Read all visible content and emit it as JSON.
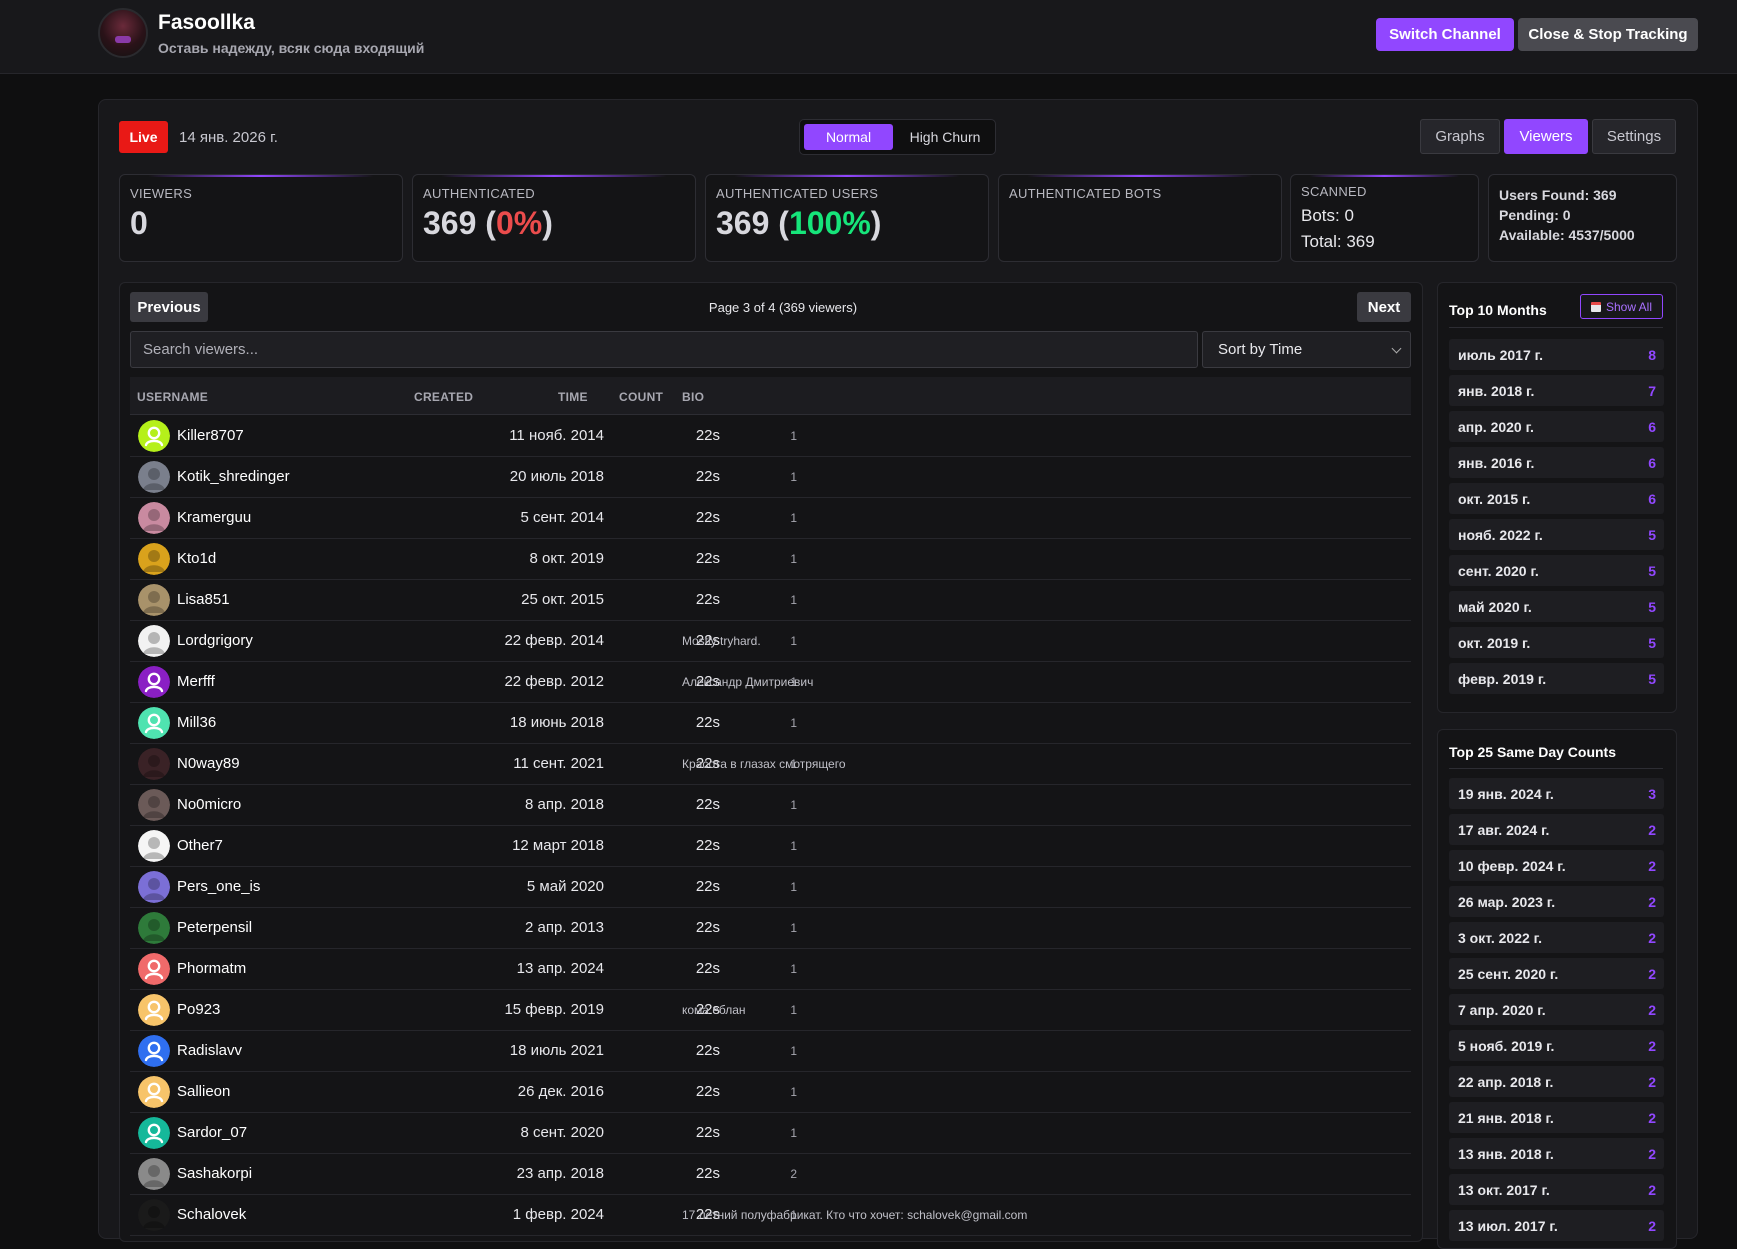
{
  "header": {
    "channel_name": "Fasoollka",
    "channel_subtitle": "Оставь надежду, всяк сюда входящий",
    "switch_label": "Switch Channel",
    "close_label": "Close & Stop Tracking"
  },
  "toolbar": {
    "live_label": "Live",
    "date": "14 янв. 2026 г.",
    "mode_normal": "Normal",
    "mode_high_churn": "High Churn",
    "tab_graphs": "Graphs",
    "tab_viewers": "Viewers",
    "tab_settings": "Settings"
  },
  "stats": {
    "viewers_label": "VIEWERS",
    "viewers_value": "0",
    "auth_label": "AUTHENTICATED",
    "auth_value": "369",
    "auth_pct": "0%",
    "auth_users_label": "AUTHENTICATED USERS",
    "auth_users_value": "369",
    "auth_users_pct": "100%",
    "auth_bots_label": "AUTHENTICATED BOTS",
    "scanned_label": "SCANNED",
    "scanned_bots": "Bots: 0",
    "scanned_total": "Total: 369",
    "users_found": "Users Found: 369",
    "pending": "Pending: 0",
    "available": "Available: 4537/5000"
  },
  "pagination": {
    "prev_label": "Previous",
    "page_info": "Page 3 of 4 (369 viewers)",
    "next_label": "Next"
  },
  "search": {
    "placeholder": "Search viewers..."
  },
  "sort": {
    "selected": "Sort by Time"
  },
  "table": {
    "columns": {
      "username": "USERNAME",
      "created": "CREATED",
      "time": "TIME",
      "count": "COUNT",
      "bio": "BIO"
    },
    "rows": [
      {
        "username": "Killer8707",
        "created": "11 нояб. 2014",
        "time": "22s",
        "count": "1",
        "bio": "",
        "avatar": "default",
        "color": "#b5f01a"
      },
      {
        "username": "Kotik_shredinger",
        "created": "20 июль 2018",
        "time": "22s",
        "count": "1",
        "bio": "",
        "avatar": "photo",
        "color": "#7a7f8c"
      },
      {
        "username": "Kramerguu",
        "created": "5 сент. 2014",
        "time": "22s",
        "count": "1",
        "bio": "",
        "avatar": "photo",
        "color": "#c98aa0"
      },
      {
        "username": "Kto1d",
        "created": "8 окт. 2019",
        "time": "22s",
        "count": "1",
        "bio": "",
        "avatar": "photo",
        "color": "#d9a21c"
      },
      {
        "username": "Lisa851",
        "created": "25 окт. 2015",
        "time": "22s",
        "count": "1",
        "bio": "",
        "avatar": "photo",
        "color": "#a8926a"
      },
      {
        "username": "Lordgrigory",
        "created": "22 февр. 2014",
        "time": "22s",
        "count": "1",
        "bio": "Mostly tryhard.",
        "avatar": "photo",
        "color": "#f2f2f2"
      },
      {
        "username": "Merfff",
        "created": "22 февр. 2012",
        "time": "22s",
        "count": "1",
        "bio": "Александр Дмитриевич",
        "avatar": "default",
        "color": "#8a1fc4"
      },
      {
        "username": "Mill36",
        "created": "18 июнь 2018",
        "time": "22s",
        "count": "1",
        "bio": "",
        "avatar": "default",
        "color": "#4fe3b0"
      },
      {
        "username": "N0way89",
        "created": "11 сент. 2021",
        "time": "22s",
        "count": "1",
        "bio": "Красота в глазах смотрящего",
        "avatar": "photo",
        "color": "#3a2226"
      },
      {
        "username": "No0micro",
        "created": "8 апр. 2018",
        "time": "22s",
        "count": "1",
        "bio": "",
        "avatar": "photo",
        "color": "#6b5a58"
      },
      {
        "username": "Other7",
        "created": "12 март 2018",
        "time": "22s",
        "count": "1",
        "bio": "",
        "avatar": "photo",
        "color": "#f5f5f5"
      },
      {
        "username": "Pers_one_is",
        "created": "5 май 2020",
        "time": "22s",
        "count": "1",
        "bio": "",
        "avatar": "photo",
        "color": "#7b6fd6"
      },
      {
        "username": "Peterpensil",
        "created": "2 апр. 2013",
        "time": "22s",
        "count": "1",
        "bio": "",
        "avatar": "photo",
        "color": "#2e7a3a"
      },
      {
        "username": "Phormatm",
        "created": "13 апр. 2024",
        "time": "22s",
        "count": "1",
        "bio": "",
        "avatar": "default",
        "color": "#f06a6a"
      },
      {
        "username": "Po923",
        "created": "15 февр. 2019",
        "time": "22s",
        "count": "1",
        "bio": "кома еблан",
        "avatar": "default",
        "color": "#f7c46a"
      },
      {
        "username": "Radislavv",
        "created": "18 июль 2021",
        "time": "22s",
        "count": "1",
        "bio": "",
        "avatar": "default",
        "color": "#2f6ff0"
      },
      {
        "username": "Sallieon",
        "created": "26 дек. 2016",
        "time": "22s",
        "count": "1",
        "bio": "",
        "avatar": "default",
        "color": "#f7c46a"
      },
      {
        "username": "Sardor_07",
        "created": "8 сент. 2020",
        "time": "22s",
        "count": "1",
        "bio": "",
        "avatar": "default",
        "color": "#15b89a"
      },
      {
        "username": "Sashakorpi",
        "created": "23 апр. 2018",
        "time": "22s",
        "count": "2",
        "bio": "",
        "avatar": "photo",
        "color": "#8a8a8a"
      },
      {
        "username": "Schalovek",
        "created": "1 февр. 2024",
        "time": "22s",
        "count": "1",
        "bio": "17 летний полуфабрикат. Кто что хочет: schalovek@gmail.com",
        "avatar": "photo",
        "color": "#1a1a1a"
      }
    ]
  },
  "top_months": {
    "title": "Top 10 Months",
    "show_all": "Show All",
    "items": [
      {
        "label": "июль 2017 г.",
        "value": "8"
      },
      {
        "label": "янв. 2018 г.",
        "value": "7"
      },
      {
        "label": "апр. 2020 г.",
        "value": "6"
      },
      {
        "label": "янв. 2016 г.",
        "value": "6"
      },
      {
        "label": "окт. 2015 г.",
        "value": "6"
      },
      {
        "label": "нояб. 2022 г.",
        "value": "5"
      },
      {
        "label": "сент. 2020 г.",
        "value": "5"
      },
      {
        "label": "май 2020 г.",
        "value": "5"
      },
      {
        "label": "окт. 2019 г.",
        "value": "5"
      },
      {
        "label": "февр. 2019 г.",
        "value": "5"
      }
    ]
  },
  "same_day": {
    "title": "Top 25 Same Day Counts",
    "items": [
      {
        "label": "19 янв. 2024 г.",
        "value": "3"
      },
      {
        "label": "17 авг. 2024 г.",
        "value": "2"
      },
      {
        "label": "10 февр. 2024 г.",
        "value": "2"
      },
      {
        "label": "26 мар. 2023 г.",
        "value": "2"
      },
      {
        "label": "3 окт. 2022 г.",
        "value": "2"
      },
      {
        "label": "25 сент. 2020 г.",
        "value": "2"
      },
      {
        "label": "7 апр. 2020 г.",
        "value": "2"
      },
      {
        "label": "5 нояб. 2019 г.",
        "value": "2"
      },
      {
        "label": "22 апр. 2018 г.",
        "value": "2"
      },
      {
        "label": "21 янв. 2018 г.",
        "value": "2"
      },
      {
        "label": "13 янв. 2018 г.",
        "value": "2"
      },
      {
        "label": "13 окт. 2017 г.",
        "value": "2"
      },
      {
        "label": "13 июл. 2017 г.",
        "value": "2"
      }
    ]
  }
}
